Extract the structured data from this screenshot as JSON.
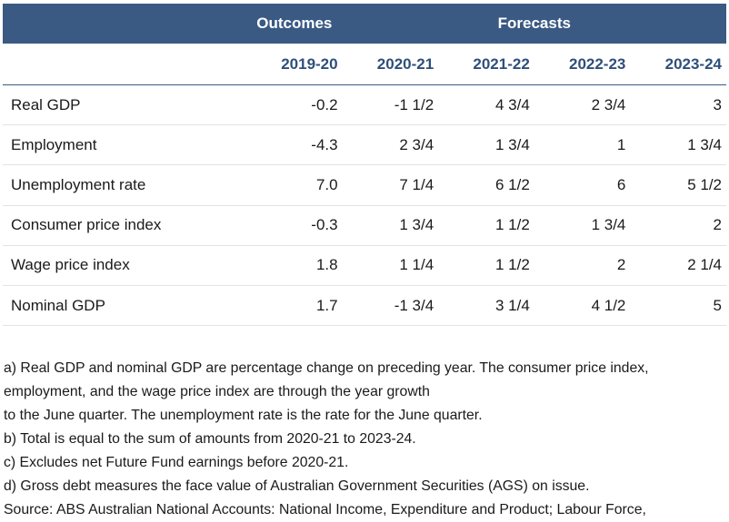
{
  "header": {
    "outcomes_label": "Outcomes",
    "forecasts_label": "Forecasts",
    "years": [
      "2019-20",
      "2020-21",
      "2021-22",
      "2022-23",
      "2023-24"
    ]
  },
  "rows": [
    {
      "label": "Real GDP",
      "values": [
        "-0.2",
        "-1 1/2",
        "4 3/4",
        "2 3/4",
        "3"
      ]
    },
    {
      "label": "Employment",
      "values": [
        "-4.3",
        "2 3/4",
        "1 3/4",
        "1",
        "1 3/4"
      ]
    },
    {
      "label": "Unemployment rate",
      "values": [
        "7.0",
        "7 1/4",
        "6 1/2",
        "6",
        "5 1/2"
      ]
    },
    {
      "label": "Consumer price index",
      "values": [
        "-0.3",
        "1 3/4",
        "1 1/2",
        "1 3/4",
        "2"
      ]
    },
    {
      "label": "Wage price index",
      "values": [
        "1.8",
        "1 1/4",
        "1 1/2",
        "2",
        "2 1/4"
      ]
    },
    {
      "label": "Nominal GDP",
      "values": [
        "1.7",
        "-1 3/4",
        "3 1/4",
        "4 1/2",
        "5"
      ]
    }
  ],
  "notes": [
    "a) Real GDP and nominal GDP are percentage change on preceding year. The consumer price index,",
    "employment, and the wage price index are through the year growth",
    "to the June quarter. The unemployment rate is the rate for the June quarter.",
    "b) Total is equal to the sum of amounts from 2020-21 to 2023-24.",
    "c) Excludes net Future Fund earnings before 2020-21.",
    "d) Gross debt measures the face value of Australian Government Securities (AGS) on issue.",
    "Source: ABS Australian National Accounts: National Income, Expenditure and Product; Labour Force,"
  ],
  "colors": {
    "header_bg": "#3a5a84",
    "header_text": "#ffffff",
    "year_text": "#2f4f7a"
  }
}
